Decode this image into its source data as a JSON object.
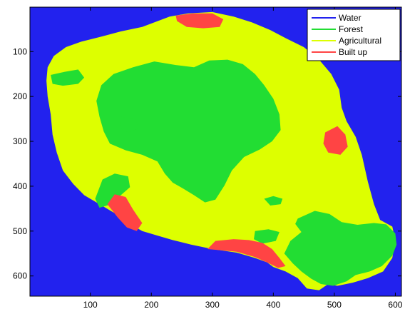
{
  "chart_data": {
    "type": "heatmap",
    "title": "",
    "xlabel": "",
    "ylabel": "",
    "xlim": [
      1,
      610
    ],
    "ylim": [
      1,
      645
    ],
    "y_reversed": true,
    "x_ticks": [
      100,
      200,
      300,
      400,
      500,
      600
    ],
    "y_ticks": [
      100,
      200,
      300,
      400,
      500,
      600
    ],
    "grid": false,
    "legend_position": "top-right",
    "categories": [
      "Water",
      "Forest",
      "Agricultural",
      "Built up"
    ],
    "colors": {
      "Water": "#2222EE",
      "Forest": "#22DD33",
      "Agricultural": "#DDFF00",
      "Built up": "#FF4444"
    },
    "regions": [
      {
        "name": "island",
        "class": "Agricultural",
        "outline": [
          [
            185,
            45
          ],
          [
            230,
            22
          ],
          [
            260,
            15
          ],
          [
            300,
            12
          ],
          [
            335,
            22
          ],
          [
            365,
            35
          ],
          [
            395,
            52
          ],
          [
            420,
            70
          ],
          [
            450,
            90
          ],
          [
            475,
            118
          ],
          [
            495,
            150
          ],
          [
            508,
            185
          ],
          [
            512,
            225
          ],
          [
            520,
            255
          ],
          [
            535,
            290
          ],
          [
            545,
            330
          ],
          [
            555,
            390
          ],
          [
            565,
            440
          ],
          [
            575,
            475
          ],
          [
            595,
            490
          ],
          [
            600,
            520
          ],
          [
            595,
            560
          ],
          [
            580,
            590
          ],
          [
            555,
            605
          ],
          [
            530,
            615
          ],
          [
            505,
            622
          ],
          [
            490,
            618
          ],
          [
            475,
            632
          ],
          [
            455,
            628
          ],
          [
            440,
            605
          ],
          [
            420,
            590
          ],
          [
            400,
            580
          ],
          [
            390,
            570
          ],
          [
            370,
            560
          ],
          [
            340,
            548
          ],
          [
            300,
            540
          ],
          [
            265,
            530
          ],
          [
            235,
            520
          ],
          [
            210,
            510
          ],
          [
            185,
            500
          ],
          [
            160,
            480
          ],
          [
            140,
            460
          ],
          [
            115,
            440
          ],
          [
            90,
            420
          ],
          [
            72,
            395
          ],
          [
            55,
            365
          ],
          [
            45,
            325
          ],
          [
            38,
            285
          ],
          [
            35,
            240
          ],
          [
            30,
            200
          ],
          [
            28,
            165
          ],
          [
            30,
            135
          ],
          [
            40,
            110
          ],
          [
            60,
            90
          ],
          [
            85,
            78
          ],
          [
            120,
            66
          ],
          [
            150,
            55
          ]
        ]
      },
      {
        "name": "central-forest",
        "class": "Forest",
        "outline": [
          [
            170,
            135
          ],
          [
            205,
            122
          ],
          [
            240,
            130
          ],
          [
            270,
            135
          ],
          [
            295,
            120
          ],
          [
            325,
            118
          ],
          [
            350,
            128
          ],
          [
            370,
            150
          ],
          [
            385,
            175
          ],
          [
            400,
            205
          ],
          [
            410,
            240
          ],
          [
            412,
            275
          ],
          [
            398,
            300
          ],
          [
            378,
            318
          ],
          [
            352,
            335
          ],
          [
            332,
            365
          ],
          [
            320,
            398
          ],
          [
            305,
            430
          ],
          [
            288,
            436
          ],
          [
            270,
            420
          ],
          [
            252,
            405
          ],
          [
            235,
            392
          ],
          [
            222,
            372
          ],
          [
            210,
            345
          ],
          [
            185,
            330
          ],
          [
            158,
            320
          ],
          [
            132,
            305
          ],
          [
            122,
            278
          ],
          [
            115,
            245
          ],
          [
            110,
            210
          ],
          [
            118,
            175
          ],
          [
            138,
            150
          ]
        ]
      },
      {
        "name": "forest-north-west",
        "class": "Forest",
        "outline": [
          [
            35,
            152
          ],
          [
            58,
            145
          ],
          [
            80,
            140
          ],
          [
            90,
            158
          ],
          [
            80,
            172
          ],
          [
            55,
            176
          ],
          [
            38,
            172
          ]
        ]
      },
      {
        "name": "forest-south-west",
        "class": "Forest",
        "outline": [
          [
            120,
            385
          ],
          [
            140,
            372
          ],
          [
            162,
            378
          ],
          [
            165,
            402
          ],
          [
            150,
            420
          ],
          [
            130,
            442
          ],
          [
            115,
            448
          ],
          [
            108,
            428
          ]
        ]
      },
      {
        "name": "forest-small-west",
        "class": "Forest",
        "outline": [
          [
            150,
            245
          ],
          [
            175,
            252
          ],
          [
            178,
            272
          ],
          [
            162,
            280
          ],
          [
            148,
            270
          ]
        ]
      },
      {
        "name": "forest-mid-east",
        "class": "Forest",
        "outline": [
          [
            385,
            428
          ],
          [
            400,
            422
          ],
          [
            415,
            428
          ],
          [
            412,
            440
          ],
          [
            395,
            443
          ]
        ]
      },
      {
        "name": "forest-south-east",
        "class": "Forest",
        "outline": [
          [
            440,
            472
          ],
          [
            468,
            455
          ],
          [
            492,
            462
          ],
          [
            512,
            480
          ],
          [
            538,
            486
          ],
          [
            565,
            482
          ],
          [
            585,
            485
          ],
          [
            600,
            505
          ],
          [
            602,
            530
          ],
          [
            595,
            555
          ],
          [
            578,
            578
          ],
          [
            558,
            590
          ],
          [
            535,
            598
          ],
          [
            520,
            612
          ],
          [
            498,
            622
          ],
          [
            478,
            618
          ],
          [
            462,
            606
          ],
          [
            446,
            590
          ],
          [
            432,
            572
          ],
          [
            418,
            550
          ],
          [
            428,
            522
          ],
          [
            446,
            502
          ],
          [
            436,
            484
          ]
        ]
      },
      {
        "name": "forest-south",
        "class": "Forest",
        "outline": [
          [
            370,
            500
          ],
          [
            392,
            496
          ],
          [
            410,
            502
          ],
          [
            404,
            522
          ],
          [
            382,
            528
          ],
          [
            368,
            518
          ]
        ]
      },
      {
        "name": "builtup-north",
        "class": "Built up",
        "outline": [
          [
            240,
            20
          ],
          [
            268,
            15
          ],
          [
            300,
            15
          ],
          [
            318,
            28
          ],
          [
            312,
            45
          ],
          [
            285,
            48
          ],
          [
            258,
            45
          ],
          [
            242,
            32
          ]
        ]
      },
      {
        "name": "builtup-east",
        "class": "Built up",
        "outline": [
          [
            485,
            280
          ],
          [
            505,
            266
          ],
          [
            518,
            285
          ],
          [
            522,
            312
          ],
          [
            510,
            330
          ],
          [
            490,
            325
          ],
          [
            482,
            305
          ]
        ]
      },
      {
        "name": "builtup-south-west",
        "class": "Built up",
        "outline": [
          [
            128,
            440
          ],
          [
            140,
            418
          ],
          [
            158,
            424
          ],
          [
            170,
            452
          ],
          [
            185,
            482
          ],
          [
            176,
            500
          ],
          [
            160,
            492
          ],
          [
            145,
            470
          ]
        ]
      },
      {
        "name": "builtup-south",
        "class": "Built up",
        "outline": [
          [
            292,
            540
          ],
          [
            305,
            522
          ],
          [
            335,
            518
          ],
          [
            360,
            520
          ],
          [
            382,
            526
          ],
          [
            398,
            540
          ],
          [
            410,
            560
          ],
          [
            420,
            578
          ],
          [
            408,
            582
          ],
          [
            390,
            570
          ],
          [
            370,
            558
          ],
          [
            340,
            546
          ]
        ]
      }
    ],
    "legend": [
      {
        "label": "Water",
        "color": "#2222EE"
      },
      {
        "label": "Forest",
        "color": "#22DD33"
      },
      {
        "label": "Agricultural",
        "color": "#DDFF00"
      },
      {
        "label": "Built up",
        "color": "#FF4444"
      }
    ]
  }
}
